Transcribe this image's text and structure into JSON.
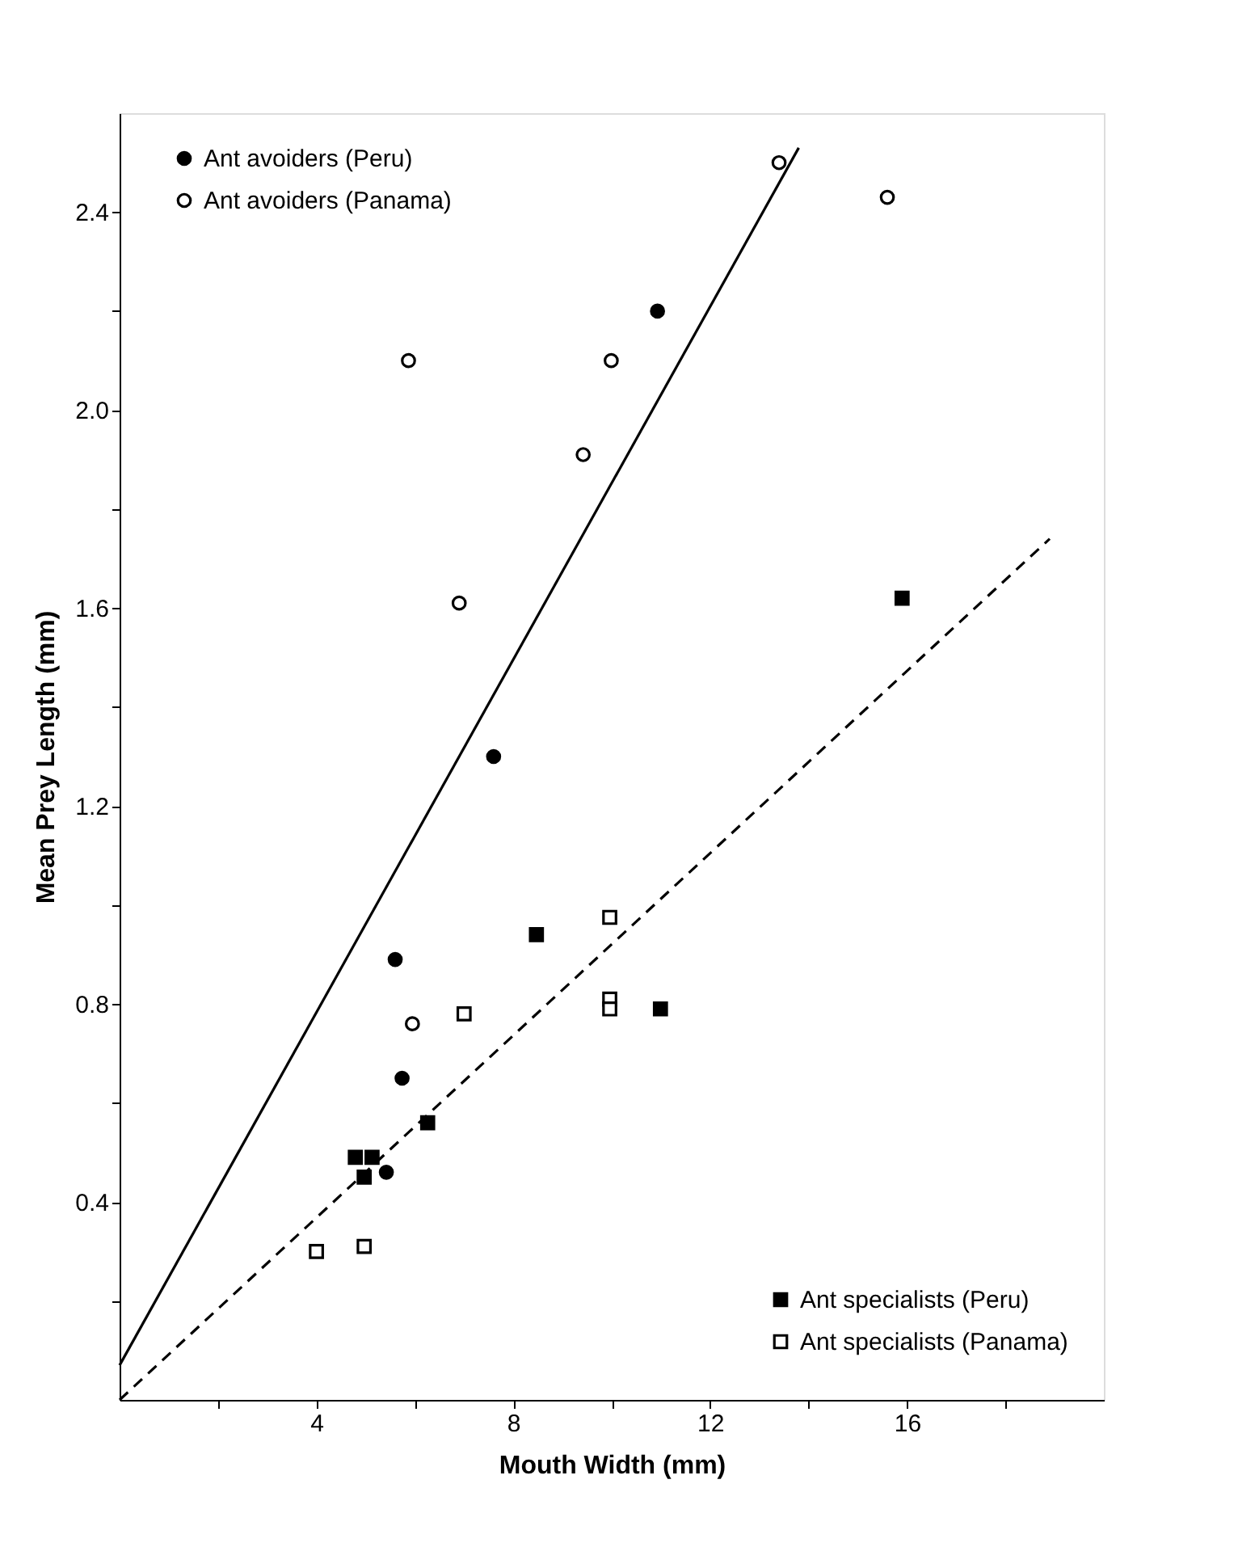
{
  "chart_data": {
    "type": "scatter",
    "xlabel": "Mouth Width (mm)",
    "ylabel": "Mean Prey Length (mm)",
    "xlim": [
      0,
      20
    ],
    "ylim": [
      0,
      2.6
    ],
    "xticks": [
      {
        "value": 2,
        "label": null
      },
      4,
      {
        "value": 6,
        "label": null
      },
      8,
      {
        "value": 10,
        "label": null
      },
      12,
      {
        "value": 14,
        "label": null
      },
      16,
      {
        "value": 18,
        "label": null
      }
    ],
    "yticks": [
      {
        "value": 0.2,
        "label": null
      },
      0.4,
      {
        "value": 0.6,
        "label": null
      },
      0.8,
      {
        "value": 1.0,
        "label": null
      },
      1.2,
      {
        "value": 1.4,
        "label": null
      },
      1.6,
      {
        "value": 1.8,
        "label": null
      },
      {
        "value": 2.0,
        "label": "2.0"
      },
      {
        "value": 2.2,
        "label": null
      },
      2.4
    ],
    "legend": "top left",
    "series": [
      {
        "name": "Ant avoiders (Peru)",
        "color": "#000000",
        "marker": "circle",
        "x": [
          10.93,
          7.6,
          5.6,
          5.74,
          5.42
        ],
        "values": [
          2.2,
          1.3,
          0.89,
          0.65,
          0.46
        ]
      },
      {
        "name": "Ant avoiders (Panama)",
        "color": "#ffffff",
        "marker": "circle",
        "x": [
          13.4,
          15.6,
          5.87,
          9.99,
          9.42,
          6.9,
          5.95
        ],
        "values": [
          2.5,
          2.43,
          2.1,
          2.1,
          1.91,
          1.61,
          0.76
        ]
      },
      {
        "name": "Ant specialists (Peru)",
        "color": "#000000",
        "marker": "square",
        "x": [
          15.9,
          8.47,
          10.99,
          6.26,
          4.79,
          5.13,
          4.97
        ],
        "values": [
          1.62,
          0.94,
          0.79,
          0.56,
          0.49,
          0.49,
          0.45
        ]
      },
      {
        "name": "Ant specialists (Panama)",
        "color": "#ffffff",
        "marker": "square",
        "x": [
          9.96,
          9.96,
          9.96,
          7.0,
          4.0,
          4.97
        ],
        "values": [
          0.975,
          0.81,
          0.79,
          0.78,
          0.3,
          0.31
        ]
      },
      {
        "type": "line",
        "color": "#000000",
        "line_style": "solid",
        "x": [
          0,
          13.8
        ],
        "values": [
          0.07,
          2.53
        ]
      },
      {
        "type": "line",
        "color": "#000000",
        "line_style": "dashed",
        "x": [
          0,
          18.9
        ],
        "values": [
          0,
          1.74
        ]
      }
    ]
  }
}
